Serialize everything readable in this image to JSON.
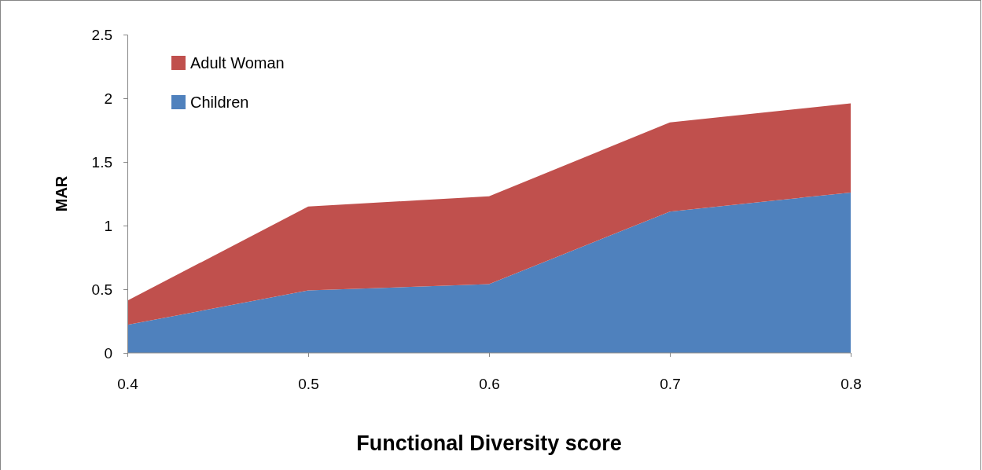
{
  "chart_data": {
    "type": "area",
    "stacked": true,
    "xlabel": "Functional Diversity score",
    "ylabel": "MAR",
    "categories": [
      "0.4",
      "0.5",
      "0.6",
      "0.7",
      "0.8"
    ],
    "series": [
      {
        "name": "Children",
        "color": "#4f81bd",
        "values": [
          0.22,
          0.49,
          0.54,
          1.11,
          1.26
        ]
      },
      {
        "name": "Adult Woman",
        "color": "#c0504d",
        "values": [
          0.19,
          0.66,
          0.69,
          0.7,
          0.7
        ]
      }
    ],
    "ylim": [
      0,
      2.5
    ],
    "yticks": [
      0,
      0.5,
      1,
      1.5,
      2,
      2.5
    ],
    "legend": "top left"
  }
}
